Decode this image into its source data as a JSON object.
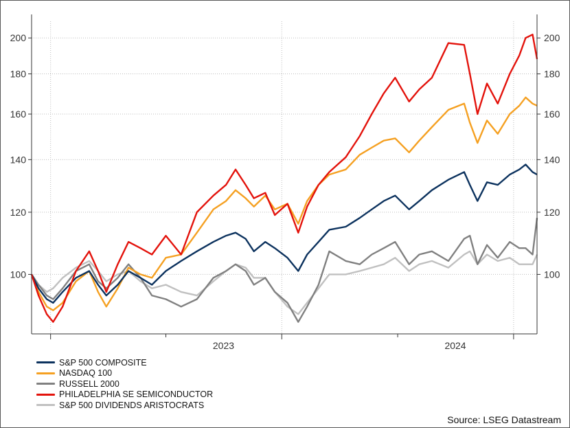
{
  "chart_data": {
    "type": "line",
    "title": "",
    "xlabel": "",
    "ylabel": "",
    "y_scale": "log",
    "ylim": [
      84,
      210
    ],
    "xlim": [
      "2022-09-01",
      "2024-11-07"
    ],
    "y_ticks": [
      100,
      120,
      140,
      160,
      180,
      200
    ],
    "x_tick_labels": [
      {
        "date": "2023-07-01",
        "label": "2023"
      },
      {
        "date": "2024-07-01",
        "label": "2024"
      }
    ],
    "x_ticks": [
      "2022-10-01",
      "2023-04-01",
      "2023-10-01",
      "2024-04-01",
      "2024-10-01"
    ],
    "grid": true,
    "legend_position": "bottom-left",
    "series": [
      {
        "name": "S&P 500 COMPOSITE",
        "color": "#0c325e",
        "points": [
          [
            "2022-09-01",
            100
          ],
          [
            "2022-09-12",
            96
          ],
          [
            "2022-09-25",
            93
          ],
          [
            "2022-10-05",
            92
          ],
          [
            "2022-10-20",
            95
          ],
          [
            "2022-11-10",
            99
          ],
          [
            "2022-12-01",
            101
          ],
          [
            "2022-12-15",
            97
          ],
          [
            "2022-12-28",
            94
          ],
          [
            "2023-01-15",
            97
          ],
          [
            "2023-02-01",
            101
          ],
          [
            "2023-02-20",
            99
          ],
          [
            "2023-03-10",
            97
          ],
          [
            "2023-04-01",
            101
          ],
          [
            "2023-04-25",
            104
          ],
          [
            "2023-05-20",
            107
          ],
          [
            "2023-06-15",
            110
          ],
          [
            "2023-07-05",
            112
          ],
          [
            "2023-07-20",
            113
          ],
          [
            "2023-08-05",
            111
          ],
          [
            "2023-08-18",
            107
          ],
          [
            "2023-09-05",
            110
          ],
          [
            "2023-09-20",
            108
          ],
          [
            "2023-10-10",
            105
          ],
          [
            "2023-10-27",
            101
          ],
          [
            "2023-11-10",
            106
          ],
          [
            "2023-11-28",
            110
          ],
          [
            "2023-12-15",
            114
          ],
          [
            "2024-01-10",
            115
          ],
          [
            "2024-02-01",
            118
          ],
          [
            "2024-02-20",
            121
          ],
          [
            "2024-03-10",
            124
          ],
          [
            "2024-03-28",
            126
          ],
          [
            "2024-04-19",
            121
          ],
          [
            "2024-05-05",
            124
          ],
          [
            "2024-05-25",
            128
          ],
          [
            "2024-06-20",
            132
          ],
          [
            "2024-07-15",
            135
          ],
          [
            "2024-07-24",
            130
          ],
          [
            "2024-08-05",
            124
          ],
          [
            "2024-08-20",
            131
          ],
          [
            "2024-09-06",
            130
          ],
          [
            "2024-09-25",
            134
          ],
          [
            "2024-10-10",
            136
          ],
          [
            "2024-10-20",
            138
          ],
          [
            "2024-10-31",
            135
          ],
          [
            "2024-11-07",
            134
          ]
        ]
      },
      {
        "name": "NASDAQ 100",
        "color": "#f5a021",
        "points": [
          [
            "2022-09-01",
            100
          ],
          [
            "2022-09-12",
            95
          ],
          [
            "2022-09-25",
            91
          ],
          [
            "2022-10-05",
            90
          ],
          [
            "2022-10-20",
            92
          ],
          [
            "2022-11-10",
            98
          ],
          [
            "2022-12-01",
            101
          ],
          [
            "2022-12-15",
            95
          ],
          [
            "2022-12-28",
            91
          ],
          [
            "2023-01-15",
            96
          ],
          [
            "2023-02-01",
            102
          ],
          [
            "2023-02-20",
            100
          ],
          [
            "2023-03-10",
            99
          ],
          [
            "2023-04-01",
            105
          ],
          [
            "2023-04-25",
            106
          ],
          [
            "2023-05-20",
            113
          ],
          [
            "2023-06-15",
            121
          ],
          [
            "2023-07-05",
            124
          ],
          [
            "2023-07-20",
            128
          ],
          [
            "2023-08-05",
            125
          ],
          [
            "2023-08-18",
            122
          ],
          [
            "2023-09-05",
            126
          ],
          [
            "2023-09-20",
            121
          ],
          [
            "2023-10-10",
            123
          ],
          [
            "2023-10-27",
            116
          ],
          [
            "2023-11-10",
            124
          ],
          [
            "2023-11-28",
            130
          ],
          [
            "2023-12-15",
            134
          ],
          [
            "2024-01-10",
            136
          ],
          [
            "2024-02-01",
            142
          ],
          [
            "2024-02-20",
            145
          ],
          [
            "2024-03-10",
            148
          ],
          [
            "2024-03-28",
            149
          ],
          [
            "2024-04-19",
            143
          ],
          [
            "2024-05-05",
            148
          ],
          [
            "2024-05-25",
            154
          ],
          [
            "2024-06-20",
            162
          ],
          [
            "2024-07-15",
            165
          ],
          [
            "2024-07-24",
            156
          ],
          [
            "2024-08-05",
            147
          ],
          [
            "2024-08-20",
            157
          ],
          [
            "2024-09-06",
            151
          ],
          [
            "2024-09-25",
            160
          ],
          [
            "2024-10-10",
            164
          ],
          [
            "2024-10-20",
            168
          ],
          [
            "2024-10-31",
            165
          ],
          [
            "2024-11-07",
            164
          ]
        ]
      },
      {
        "name": "RUSSELL 2000",
        "color": "#808080",
        "points": [
          [
            "2022-09-01",
            100
          ],
          [
            "2022-09-12",
            97
          ],
          [
            "2022-09-25",
            94
          ],
          [
            "2022-10-05",
            93
          ],
          [
            "2022-10-20",
            96
          ],
          [
            "2022-11-10",
            101
          ],
          [
            "2022-12-01",
            103
          ],
          [
            "2022-12-15",
            98
          ],
          [
            "2022-12-28",
            96
          ],
          [
            "2023-01-15",
            99
          ],
          [
            "2023-02-01",
            103
          ],
          [
            "2023-02-20",
            99
          ],
          [
            "2023-03-10",
            94
          ],
          [
            "2023-04-01",
            93
          ],
          [
            "2023-04-25",
            91
          ],
          [
            "2023-05-20",
            93
          ],
          [
            "2023-06-15",
            99
          ],
          [
            "2023-07-05",
            101
          ],
          [
            "2023-07-20",
            103
          ],
          [
            "2023-08-05",
            101
          ],
          [
            "2023-08-18",
            97
          ],
          [
            "2023-09-05",
            99
          ],
          [
            "2023-09-20",
            95
          ],
          [
            "2023-10-10",
            92
          ],
          [
            "2023-10-27",
            87
          ],
          [
            "2023-11-10",
            91
          ],
          [
            "2023-11-28",
            97
          ],
          [
            "2023-12-15",
            107
          ],
          [
            "2024-01-10",
            104
          ],
          [
            "2024-02-01",
            103
          ],
          [
            "2024-02-20",
            106
          ],
          [
            "2024-03-10",
            108
          ],
          [
            "2024-03-28",
            110
          ],
          [
            "2024-04-19",
            103
          ],
          [
            "2024-05-05",
            106
          ],
          [
            "2024-05-25",
            107
          ],
          [
            "2024-06-20",
            104
          ],
          [
            "2024-07-15",
            111
          ],
          [
            "2024-07-24",
            112
          ],
          [
            "2024-08-05",
            103
          ],
          [
            "2024-08-20",
            109
          ],
          [
            "2024-09-06",
            105
          ],
          [
            "2024-09-25",
            110
          ],
          [
            "2024-10-10",
            108
          ],
          [
            "2024-10-20",
            108
          ],
          [
            "2024-10-31",
            106
          ],
          [
            "2024-11-07",
            118
          ]
        ]
      },
      {
        "name": "PHILADELPHIA SE SEMICONDUCTOR",
        "color": "#e3120b",
        "points": [
          [
            "2022-09-01",
            100
          ],
          [
            "2022-09-12",
            94
          ],
          [
            "2022-09-25",
            89
          ],
          [
            "2022-10-05",
            87
          ],
          [
            "2022-10-20",
            91
          ],
          [
            "2022-11-10",
            101
          ],
          [
            "2022-12-01",
            107
          ],
          [
            "2022-12-15",
            101
          ],
          [
            "2022-12-28",
            95
          ],
          [
            "2023-01-15",
            103
          ],
          [
            "2023-02-01",
            110
          ],
          [
            "2023-02-20",
            108
          ],
          [
            "2023-03-10",
            106
          ],
          [
            "2023-04-01",
            112
          ],
          [
            "2023-04-25",
            106
          ],
          [
            "2023-05-20",
            120
          ],
          [
            "2023-06-15",
            126
          ],
          [
            "2023-07-05",
            130
          ],
          [
            "2023-07-20",
            136
          ],
          [
            "2023-08-05",
            130
          ],
          [
            "2023-08-18",
            125
          ],
          [
            "2023-09-05",
            127
          ],
          [
            "2023-09-20",
            119
          ],
          [
            "2023-10-10",
            123
          ],
          [
            "2023-10-27",
            113
          ],
          [
            "2023-11-10",
            122
          ],
          [
            "2023-11-28",
            130
          ],
          [
            "2023-12-15",
            135
          ],
          [
            "2024-01-10",
            141
          ],
          [
            "2024-02-01",
            150
          ],
          [
            "2024-02-20",
            160
          ],
          [
            "2024-03-10",
            170
          ],
          [
            "2024-03-28",
            178
          ],
          [
            "2024-04-19",
            166
          ],
          [
            "2024-05-05",
            172
          ],
          [
            "2024-05-25",
            178
          ],
          [
            "2024-06-20",
            197
          ],
          [
            "2024-07-15",
            196
          ],
          [
            "2024-07-24",
            180
          ],
          [
            "2024-08-05",
            160
          ],
          [
            "2024-08-20",
            175
          ],
          [
            "2024-09-06",
            165
          ],
          [
            "2024-09-25",
            180
          ],
          [
            "2024-10-10",
            190
          ],
          [
            "2024-10-20",
            200
          ],
          [
            "2024-10-31",
            202
          ],
          [
            "2024-11-07",
            188
          ]
        ]
      },
      {
        "name": "S&P 500 DIVIDENDS ARISTOCRATS",
        "color": "#c0c0c0",
        "points": [
          [
            "2022-09-01",
            100
          ],
          [
            "2022-09-12",
            97
          ],
          [
            "2022-09-25",
            95
          ],
          [
            "2022-10-05",
            96
          ],
          [
            "2022-10-20",
            99
          ],
          [
            "2022-11-10",
            102
          ],
          [
            "2022-12-01",
            104
          ],
          [
            "2022-12-15",
            101
          ],
          [
            "2022-12-28",
            98
          ],
          [
            "2023-01-15",
            100
          ],
          [
            "2023-02-01",
            101
          ],
          [
            "2023-02-20",
            98
          ],
          [
            "2023-03-10",
            96
          ],
          [
            "2023-04-01",
            97
          ],
          [
            "2023-04-25",
            95
          ],
          [
            "2023-05-20",
            94
          ],
          [
            "2023-06-15",
            98
          ],
          [
            "2023-07-05",
            101
          ],
          [
            "2023-07-20",
            103
          ],
          [
            "2023-08-05",
            102
          ],
          [
            "2023-08-18",
            99
          ],
          [
            "2023-09-05",
            99
          ],
          [
            "2023-09-20",
            95
          ],
          [
            "2023-10-10",
            91
          ],
          [
            "2023-10-27",
            89
          ],
          [
            "2023-11-10",
            92
          ],
          [
            "2023-11-28",
            96
          ],
          [
            "2023-12-15",
            100
          ],
          [
            "2024-01-10",
            100
          ],
          [
            "2024-02-01",
            101
          ],
          [
            "2024-02-20",
            102
          ],
          [
            "2024-03-10",
            103
          ],
          [
            "2024-03-28",
            105
          ],
          [
            "2024-04-19",
            101
          ],
          [
            "2024-05-05",
            103
          ],
          [
            "2024-05-25",
            104
          ],
          [
            "2024-06-20",
            102
          ],
          [
            "2024-07-15",
            106
          ],
          [
            "2024-07-24",
            107
          ],
          [
            "2024-08-05",
            103
          ],
          [
            "2024-08-20",
            106
          ],
          [
            "2024-09-06",
            104
          ],
          [
            "2024-09-25",
            105
          ],
          [
            "2024-10-10",
            103
          ],
          [
            "2024-10-20",
            103
          ],
          [
            "2024-10-31",
            103
          ],
          [
            "2024-11-07",
            106
          ]
        ]
      }
    ]
  },
  "source_text": "Source: LSEG Datastream"
}
